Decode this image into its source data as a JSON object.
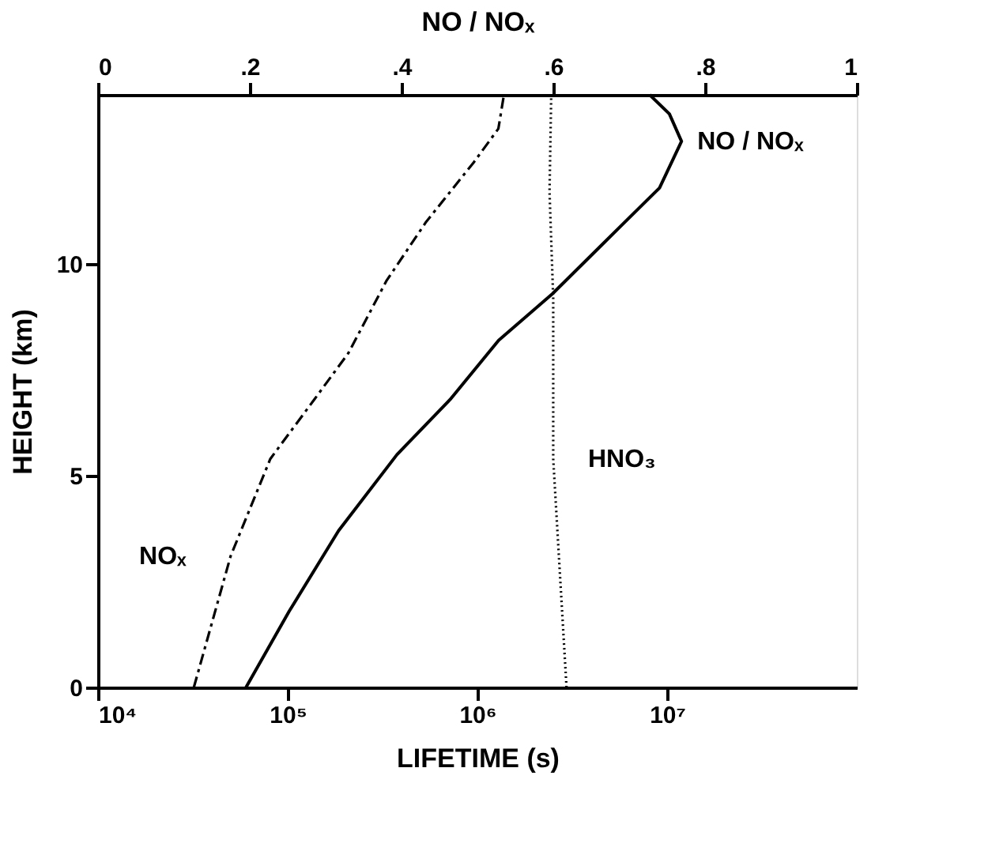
{
  "chart_data": {
    "type": "line",
    "xlabel": "LIFETIME (s)",
    "ylabel": "HEIGHT (km)",
    "x2label": "NO / NOₓ",
    "log": "x",
    "grid": false,
    "legend": false,
    "marker": "none",
    "xlim": [
      10000,
      100000000
    ],
    "xticks": [
      {
        "value": 10000,
        "label": "10⁴"
      },
      {
        "value": 100000,
        "label": "10⁵"
      },
      {
        "value": 1000000,
        "label": "10⁶"
      },
      {
        "value": 10000000,
        "label": "10⁷"
      }
    ],
    "x2lim": [
      0,
      1
    ],
    "x2ticks": [
      {
        "value": 0,
        "label": "0"
      },
      {
        "value": 0.2,
        "label": ".2"
      },
      {
        "value": 0.4,
        "label": ".4"
      },
      {
        "value": 0.6,
        "label": ".6"
      },
      {
        "value": 0.8,
        "label": ".8"
      },
      {
        "value": 1,
        "label": "1"
      }
    ],
    "ylim": [
      0,
      14
    ],
    "yticks": [
      0,
      5,
      10
    ],
    "series": [
      {
        "name": "NOₓ",
        "color": "#000000",
        "line_style": "dashed",
        "x": [
          32000,
          50000,
          81000,
          138000,
          209000,
          331000,
          537000,
          955000,
          1290000,
          1380000
        ],
        "values": [
          0,
          3.1,
          5.4,
          6.8,
          7.9,
          9.6,
          11.0,
          12.4,
          13.2,
          14.0
        ]
      },
      {
        "name": "HNO₃",
        "color": "#000000",
        "line_style": "dotted",
        "x": [
          2950000,
          2510000,
          2510000,
          2400000,
          2450000
        ],
        "values": [
          0,
          5.4,
          9.2,
          11.7,
          14.0
        ]
      },
      {
        "name": "NO / NOₓ",
        "color": "#000000",
        "line_style": "solid",
        "axis": "x2",
        "x": [
          0.195,
          0.252,
          0.317,
          0.394,
          0.464,
          0.528,
          0.599,
          0.689,
          0.74,
          0.769,
          0.753,
          0.727
        ],
        "values": [
          0,
          1.8,
          3.7,
          5.5,
          6.8,
          8.2,
          9.3,
          10.9,
          11.8,
          12.9,
          13.55,
          14.0
        ]
      }
    ]
  }
}
